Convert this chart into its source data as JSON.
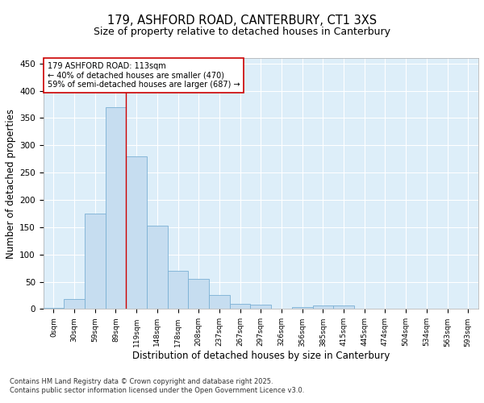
{
  "title_line1": "179, ASHFORD ROAD, CANTERBURY, CT1 3XS",
  "title_line2": "Size of property relative to detached houses in Canterbury",
  "xlabel": "Distribution of detached houses by size in Canterbury",
  "ylabel": "Number of detached properties",
  "bar_labels": [
    "0sqm",
    "30sqm",
    "59sqm",
    "89sqm",
    "119sqm",
    "148sqm",
    "178sqm",
    "208sqm",
    "237sqm",
    "267sqm",
    "297sqm",
    "326sqm",
    "356sqm",
    "385sqm",
    "415sqm",
    "445sqm",
    "474sqm",
    "504sqm",
    "534sqm",
    "563sqm",
    "593sqm"
  ],
  "values": [
    2,
    18,
    175,
    370,
    280,
    152,
    70,
    55,
    25,
    10,
    8,
    0,
    3,
    6,
    6,
    0,
    0,
    0,
    0,
    0,
    0
  ],
  "bar_color": "#c6ddf0",
  "bar_edge_color": "#7ab0d4",
  "vline_x": 3.5,
  "vline_color": "#cc0000",
  "annotation_text": "179 ASHFORD ROAD: 113sqm\n← 40% of detached houses are smaller (470)\n59% of semi-detached houses are larger (687) →",
  "annotation_box_color": "#ffffff",
  "annotation_box_edge_color": "#cc0000",
  "ylim": [
    0,
    460
  ],
  "yticks": [
    0,
    50,
    100,
    150,
    200,
    250,
    300,
    350,
    400,
    450
  ],
  "fig_bg_color": "#ffffff",
  "plot_bg_color": "#ddeef9",
  "grid_color": "#ffffff",
  "footer_line1": "Contains HM Land Registry data © Crown copyright and database right 2025.",
  "footer_line2": "Contains public sector information licensed under the Open Government Licence v3.0.",
  "title_fontsize": 10.5,
  "subtitle_fontsize": 9,
  "axis_label_fontsize": 8.5,
  "tick_fontsize": 6.5,
  "annotation_fontsize": 7,
  "footer_fontsize": 6
}
